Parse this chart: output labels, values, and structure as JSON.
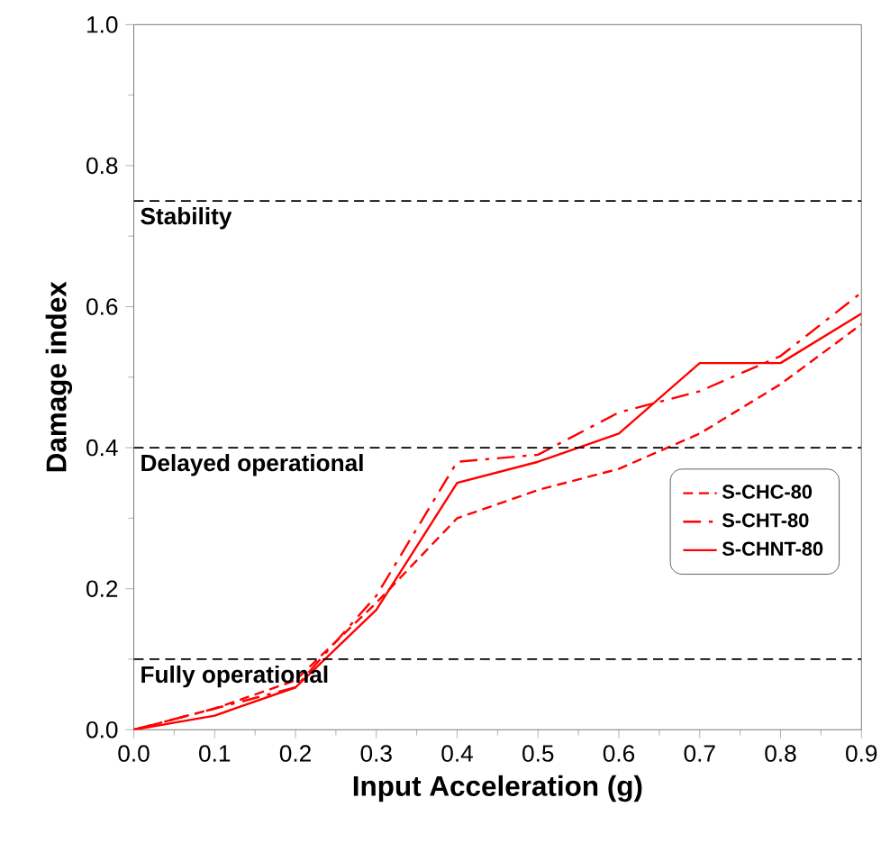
{
  "chart_data": {
    "type": "line",
    "xlabel": "Input Acceleration (g)",
    "ylabel": "Damage index",
    "xlim": [
      0,
      0.9
    ],
    "ylim": [
      0,
      1
    ],
    "xticks": [
      {
        "value": 0,
        "label": "0.0"
      },
      0.1,
      0.2,
      0.3,
      0.4,
      0.5,
      0.6,
      0.7,
      0.8,
      0.9
    ],
    "yticks": [
      {
        "value": 0,
        "label": "0.0"
      },
      0.2,
      0.4,
      0.6,
      0.8,
      {
        "value": 1,
        "label": "1.0"
      }
    ],
    "x": [
      0,
      0.1,
      0.2,
      0.3,
      0.4,
      0.5,
      0.6,
      0.7,
      0.8,
      0.9
    ],
    "series": [
      {
        "name": "S-CHC-80",
        "color": "#ff0000",
        "line_style": "dashed",
        "values": [
          0,
          0.03,
          0.07,
          0.18,
          0.3,
          0.34,
          0.37,
          0.42,
          0.49,
          0.575
        ]
      },
      {
        "name": "S-CHT-80",
        "color": "#ff0000",
        "line_style": "dashdot",
        "values": [
          0,
          0.03,
          0.06,
          0.19,
          0.38,
          0.39,
          0.45,
          0.48,
          0.53,
          0.62
        ]
      },
      {
        "name": "S-CHNT-80",
        "color": "#ff0000",
        "line_style": "solid",
        "values": [
          0,
          0.02,
          0.06,
          0.17,
          0.35,
          0.38,
          0.42,
          0.52,
          0.52,
          0.59
        ]
      }
    ],
    "ref_lines": [
      {
        "axis": "y",
        "value": 0.1,
        "label": "Fully operational",
        "color": "#000000",
        "line_style": "dashed"
      },
      {
        "axis": "y",
        "value": 0.4,
        "label": "Delayed operational",
        "color": "#000000",
        "line_style": "dashed"
      },
      {
        "axis": "y",
        "value": 0.75,
        "label": "Stability",
        "color": "#000000",
        "line_style": "dashed"
      }
    ],
    "legend": "right",
    "grid": false,
    "marker": "none"
  }
}
